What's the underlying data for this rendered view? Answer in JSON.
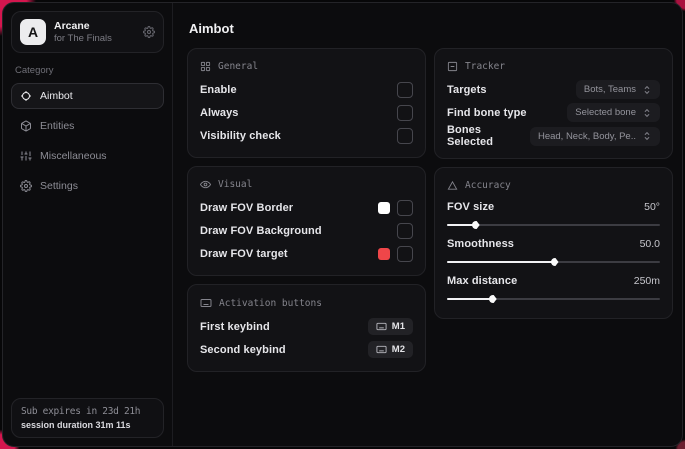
{
  "app": {
    "name": "Arcane",
    "subtitle": "for The Finals",
    "logo_letter": "A"
  },
  "sidebar": {
    "category_label": "Category",
    "items": [
      {
        "label": "Aimbot",
        "icon": "crosshair-icon",
        "active": true
      },
      {
        "label": "Entities",
        "icon": "cube-icon",
        "active": false
      },
      {
        "label": "Miscellaneous",
        "icon": "sliders-icon",
        "active": false
      },
      {
        "label": "Settings",
        "icon": "gear-icon",
        "active": false
      }
    ],
    "footer": {
      "line1": "Sub expires in 23d 21h",
      "line2": "session duration 31m 11s"
    }
  },
  "main": {
    "title": "Aimbot"
  },
  "cards": {
    "general": {
      "title": "General",
      "rows": [
        {
          "label": "Enable",
          "checked": false
        },
        {
          "label": "Always",
          "checked": false
        },
        {
          "label": "Visibility check",
          "checked": false
        }
      ]
    },
    "visual": {
      "title": "Visual",
      "rows": [
        {
          "label": "Draw FOV Border",
          "swatch": "#ffffff",
          "checked": false
        },
        {
          "label": "Draw FOV Background",
          "swatch": null,
          "checked": false
        },
        {
          "label": "Draw FOV target",
          "swatch": "#ef4649",
          "checked": false
        }
      ]
    },
    "activation": {
      "title": "Activation buttons",
      "rows": [
        {
          "label": "First keybind",
          "key": "M1"
        },
        {
          "label": "Second keybind",
          "key": "M2"
        }
      ]
    },
    "tracker": {
      "title": "Tracker",
      "rows": [
        {
          "label": "Targets",
          "value": "Bots, Teams"
        },
        {
          "label": "Find bone type",
          "value": "Selected bone"
        },
        {
          "label": "Bones Selected",
          "value": "Head, Neck, Body, Pe.."
        }
      ]
    },
    "accuracy": {
      "title": "Accuracy",
      "rows": [
        {
          "label": "FOV size",
          "value": "50°",
          "percent": 13
        },
        {
          "label": "Smoothness",
          "value": "50.0",
          "percent": 50
        },
        {
          "label": "Max distance",
          "value": "250m",
          "percent": 21
        }
      ]
    }
  },
  "colors": {
    "accent": "#d4164e",
    "window_bg": "#0c0c0e",
    "card_bg": "#121215",
    "swatch_white": "#ffffff",
    "swatch_red": "#ef4649"
  }
}
